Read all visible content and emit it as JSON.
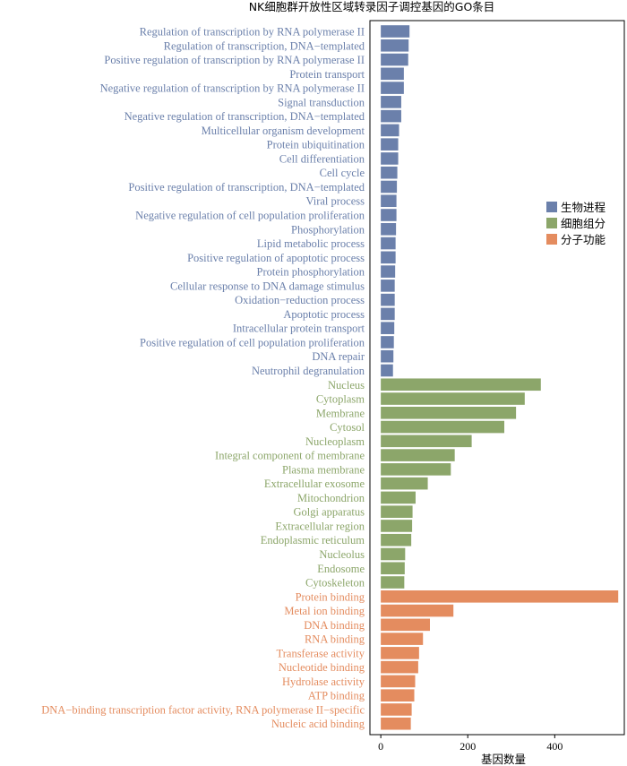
{
  "chart_data": {
    "type": "bar",
    "orientation": "horizontal",
    "title": "NK细胞群开放性区域转录因子调控基因的GO条目",
    "xlabel": "基因数量",
    "ylabel": "",
    "xlim": [
      -25,
      560
    ],
    "xticks": [
      0,
      200,
      400
    ],
    "colors": {
      "生物进程": "#6b80ab",
      "细胞组分": "#8ca66a",
      "分子功能": "#e48c5f"
    },
    "legend": {
      "position": "right",
      "entries": [
        "生物进程",
        "细胞组分",
        "分子功能"
      ]
    },
    "series": [
      {
        "name": "生物进程",
        "categories": [
          "Regulation of transcription by RNA polymerase II",
          "Regulation of transcription, DNA−templated",
          "Positive regulation of transcription by RNA polymerase II",
          "Protein transport",
          "Negative regulation of transcription by RNA polymerase II",
          "Signal transduction",
          "Negative regulation of transcription, DNA−templated",
          "Multicellular organism development",
          "Protein ubiquitination",
          "Cell differentiation",
          "Cell cycle",
          "Positive regulation of transcription, DNA−templated",
          "Viral process",
          "Negative regulation of cell population proliferation",
          "Phosphorylation",
          "Lipid metabolic process",
          "Positive regulation of apoptotic process",
          "Protein phosphorylation",
          "Cellular response to DNA damage stimulus",
          "Oxidation−reduction process",
          "Apoptotic process",
          "Intracellular protein transport",
          "Positive regulation of cell population proliferation",
          "DNA repair",
          "Neutrophil degranulation"
        ],
        "values": [
          66,
          64,
          63,
          53,
          53,
          47,
          47,
          42,
          40,
          40,
          38,
          37,
          36,
          36,
          35,
          34,
          34,
          33,
          32,
          32,
          32,
          31,
          30,
          29,
          28
        ]
      },
      {
        "name": "细胞组分",
        "categories": [
          "Nucleus",
          "Cytoplasm",
          "Membrane",
          "Cytosol",
          "Nucleoplasm",
          "Integral component of membrane",
          "Plasma membrane",
          "Extracellular exosome",
          "Mitochondrion",
          "Golgi apparatus",
          "Extracellular region",
          "Endoplasmic reticulum",
          "Nucleolus",
          "Endosome",
          "Cytoskeleton"
        ],
        "values": [
          368,
          331,
          311,
          284,
          209,
          170,
          161,
          108,
          80,
          73,
          72,
          70,
          56,
          55,
          54
        ]
      },
      {
        "name": "分子功能",
        "categories": [
          "Protein binding",
          "Metal ion binding",
          "DNA binding",
          "RNA binding",
          "Transferase activity",
          "Nucleotide binding",
          "Hydrolase activity",
          "ATP binding",
          "DNA−binding transcription factor activity, RNA polymerase II−specific",
          "Nucleic acid binding"
        ],
        "values": [
          546,
          167,
          113,
          97,
          88,
          86,
          79,
          77,
          71,
          69
        ]
      }
    ]
  }
}
